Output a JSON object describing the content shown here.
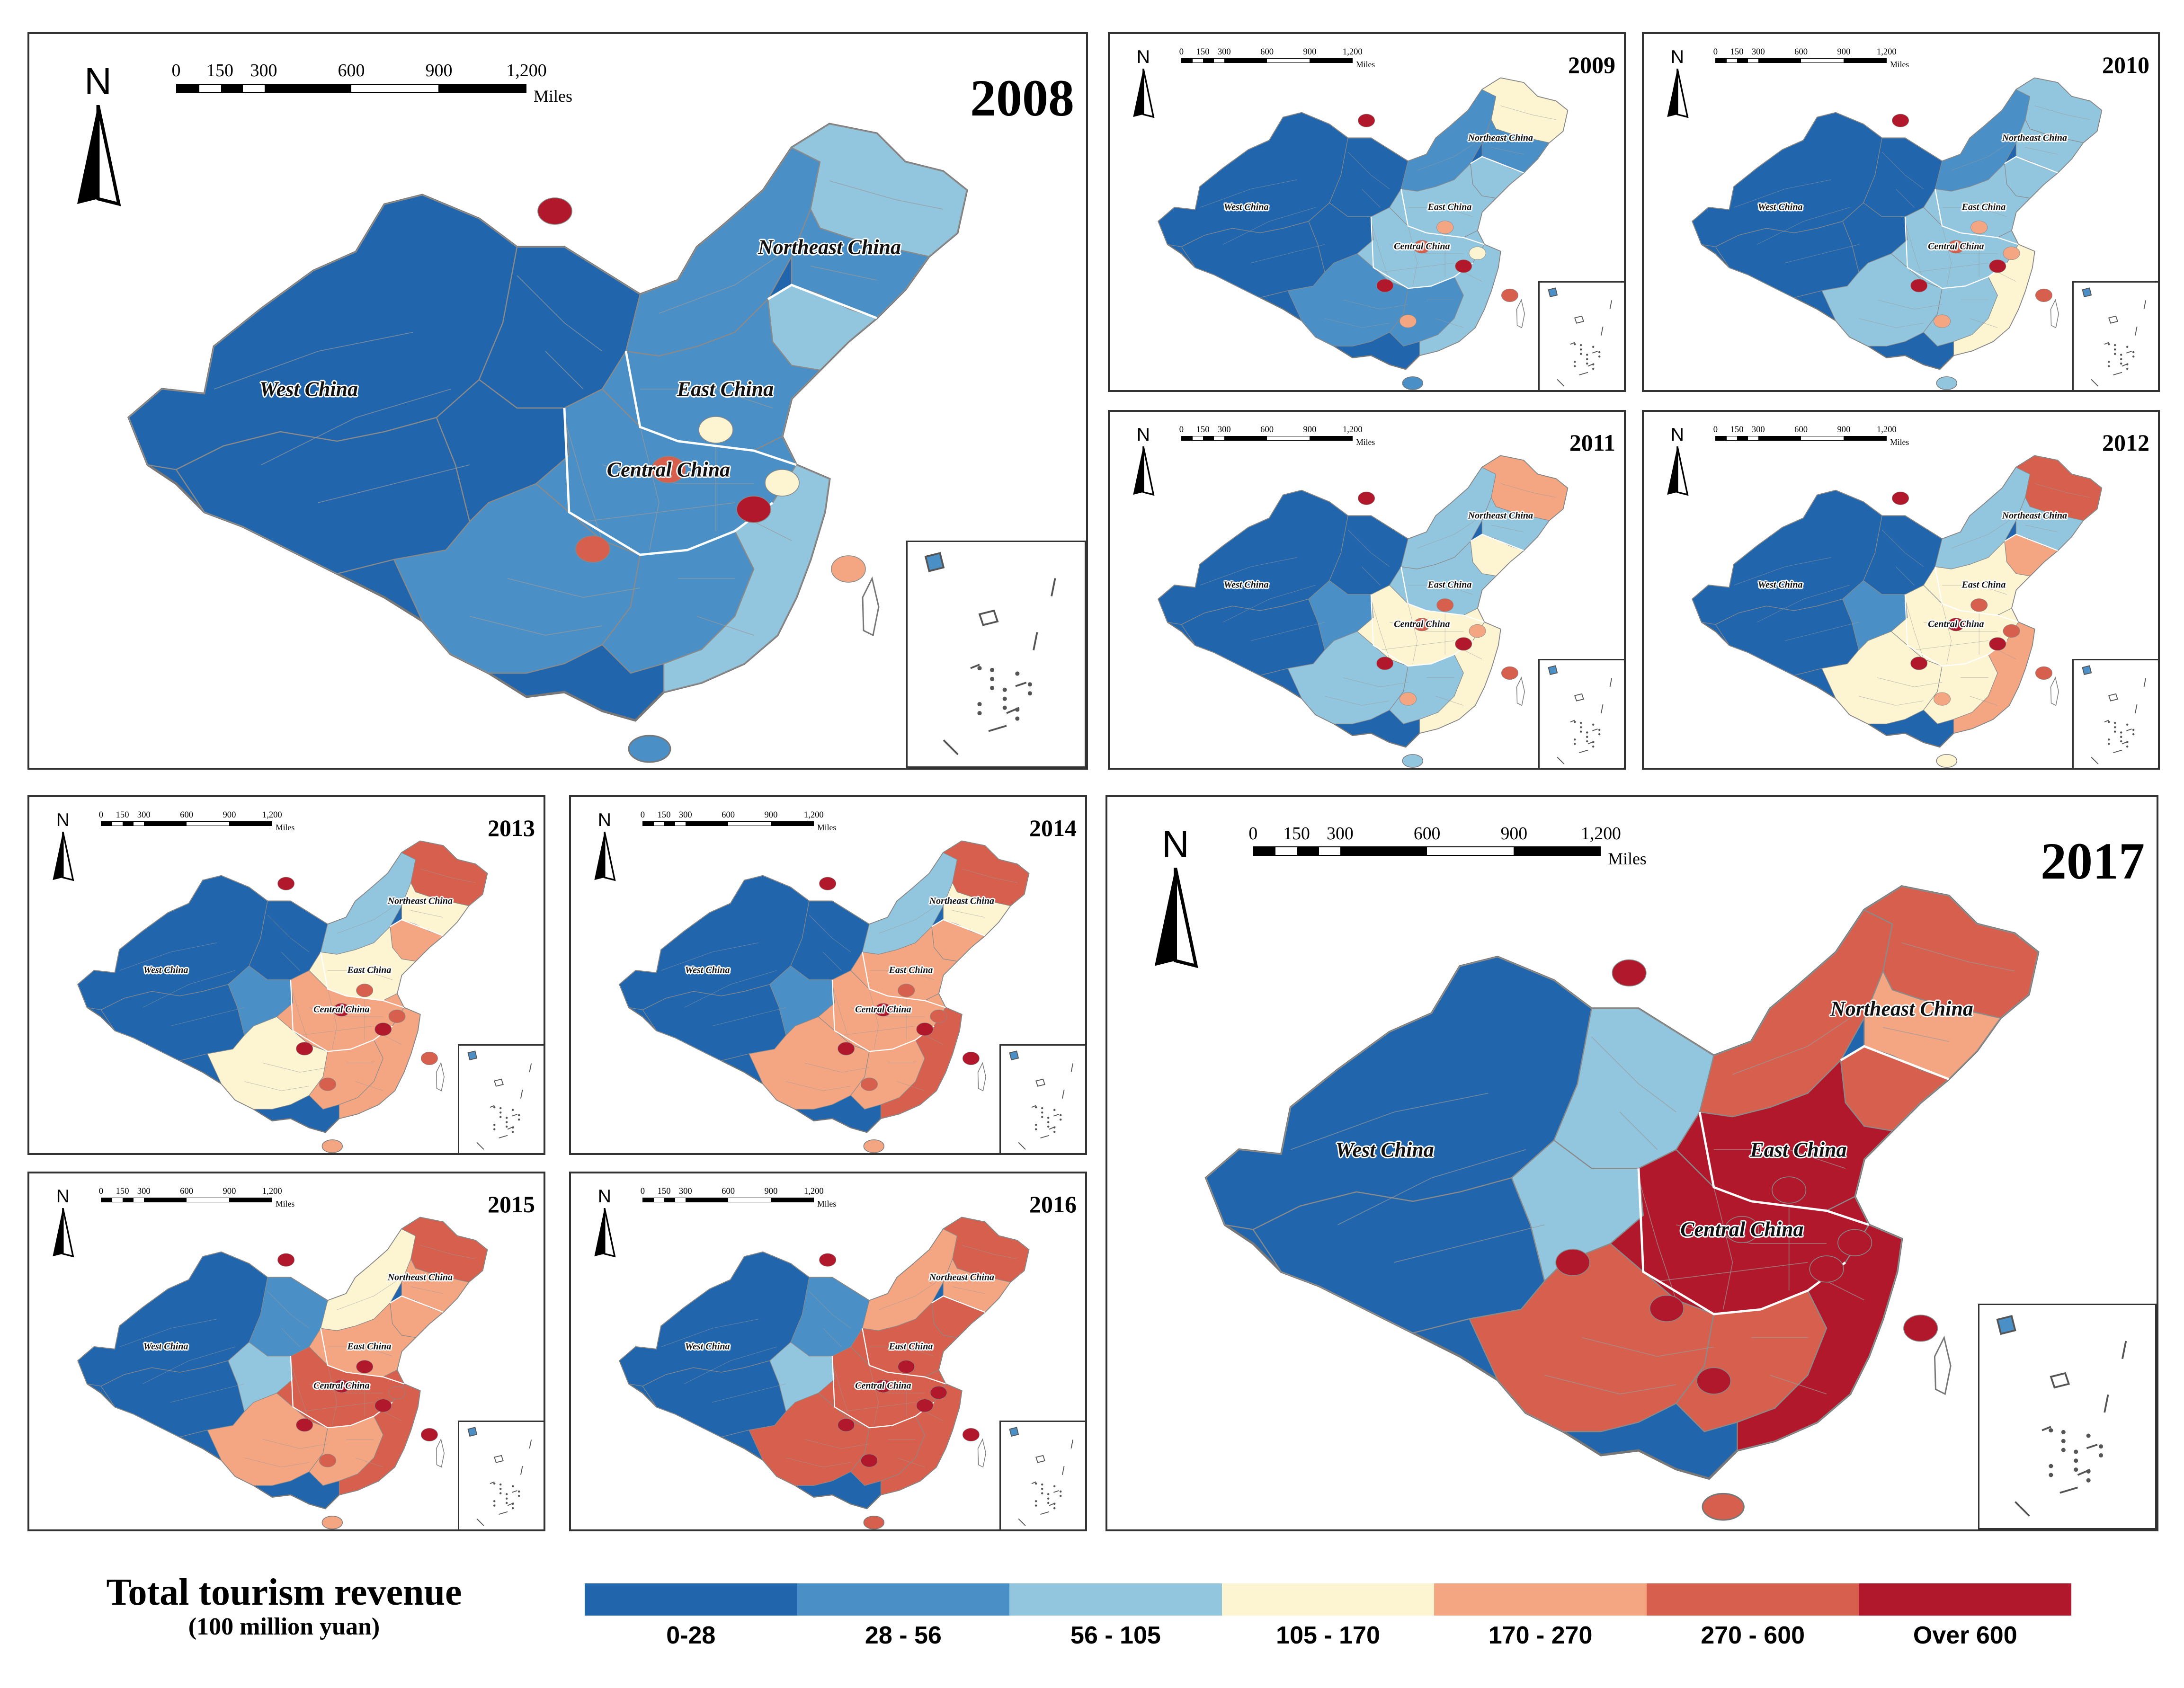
{
  "colors": {
    "c1": "#2166ac",
    "c2": "#4a90c6",
    "c3": "#92c5de",
    "c4": "#fdf5d2",
    "c5": "#f4a582",
    "c6": "#d6604d",
    "c7": "#b2182b",
    "border": "#8a8a8a",
    "frame": "#333333"
  },
  "scale_bar": {
    "ticks": [
      "0",
      "150",
      "300",
      "600",
      "900",
      "1,200"
    ],
    "unit": "Miles"
  },
  "north_label": "N",
  "region_labels": {
    "west": "West China",
    "east": "East China",
    "central": "Central China",
    "northeast": "Northeast China"
  },
  "panels": [
    {
      "year": "2008",
      "classes": {
        "west": 1,
        "northwest": 1,
        "tibet": 1,
        "qinghai": 1,
        "innermongolia": 2,
        "heilongjiang": 3,
        "jilin": 2,
        "liaoning": 3,
        "north": 2,
        "central": 2,
        "southwest": 2,
        "south": 2,
        "coast": 3
      },
      "hotspots": [
        [
          0.51,
          0.16,
          7
        ],
        [
          0.72,
          0.61,
          7
        ],
        [
          0.55,
          0.67,
          6
        ],
        [
          0.63,
          0.55,
          6
        ],
        [
          0.82,
          0.7,
          5
        ],
        [
          0.68,
          0.49,
          4
        ],
        [
          0.75,
          0.57,
          4
        ]
      ]
    },
    {
      "year": "2009",
      "classes": {
        "west": 1,
        "northwest": 1,
        "tibet": 1,
        "qinghai": 1,
        "innermongolia": 2,
        "heilongjiang": 4,
        "jilin": 2,
        "liaoning": 3,
        "north": 3,
        "central": 3,
        "southwest": 2,
        "south": 2,
        "coast": 3
      },
      "hotspots": [
        [
          0.51,
          0.16,
          7
        ],
        [
          0.72,
          0.61,
          7
        ],
        [
          0.55,
          0.67,
          7
        ],
        [
          0.63,
          0.55,
          6
        ],
        [
          0.82,
          0.7,
          6
        ],
        [
          0.68,
          0.49,
          5
        ],
        [
          0.75,
          0.57,
          4
        ],
        [
          0.6,
          0.78,
          5
        ]
      ]
    },
    {
      "year": "2010",
      "classes": {
        "west": 1,
        "northwest": 1,
        "tibet": 1,
        "qinghai": 1,
        "innermongolia": 2,
        "heilongjiang": 3,
        "jilin": 3,
        "liaoning": 3,
        "north": 3,
        "central": 3,
        "southwest": 3,
        "south": 3,
        "coast": 4
      },
      "hotspots": [
        [
          0.51,
          0.16,
          7
        ],
        [
          0.72,
          0.61,
          7
        ],
        [
          0.55,
          0.67,
          7
        ],
        [
          0.63,
          0.55,
          6
        ],
        [
          0.82,
          0.7,
          6
        ],
        [
          0.68,
          0.49,
          5
        ],
        [
          0.75,
          0.57,
          5
        ],
        [
          0.6,
          0.78,
          5
        ]
      ]
    },
    {
      "year": "2011",
      "classes": {
        "west": 1,
        "northwest": 1,
        "tibet": 1,
        "qinghai": 2,
        "innermongolia": 3,
        "heilongjiang": 5,
        "jilin": 3,
        "liaoning": 4,
        "north": 3,
        "central": 4,
        "southwest": 3,
        "south": 3,
        "coast": 4
      },
      "hotspots": [
        [
          0.51,
          0.16,
          7
        ],
        [
          0.72,
          0.61,
          7
        ],
        [
          0.55,
          0.67,
          7
        ],
        [
          0.63,
          0.55,
          6
        ],
        [
          0.82,
          0.7,
          6
        ],
        [
          0.68,
          0.49,
          6
        ],
        [
          0.75,
          0.57,
          5
        ],
        [
          0.6,
          0.78,
          5
        ]
      ]
    },
    {
      "year": "2012",
      "classes": {
        "west": 1,
        "northwest": 1,
        "tibet": 1,
        "qinghai": 2,
        "innermongolia": 3,
        "heilongjiang": 6,
        "jilin": 3,
        "liaoning": 5,
        "north": 4,
        "central": 4,
        "southwest": 4,
        "south": 4,
        "coast": 5
      },
      "hotspots": [
        [
          0.51,
          0.16,
          7
        ],
        [
          0.72,
          0.61,
          7
        ],
        [
          0.55,
          0.67,
          7
        ],
        [
          0.63,
          0.55,
          7
        ],
        [
          0.82,
          0.7,
          6
        ],
        [
          0.68,
          0.49,
          6
        ],
        [
          0.75,
          0.57,
          6
        ],
        [
          0.6,
          0.78,
          5
        ]
      ]
    },
    {
      "year": "2013",
      "classes": {
        "west": 1,
        "northwest": 1,
        "tibet": 1,
        "qinghai": 2,
        "innermongolia": 3,
        "heilongjiang": 6,
        "jilin": 4,
        "liaoning": 5,
        "north": 4,
        "central": 5,
        "southwest": 4,
        "south": 5,
        "coast": 5
      },
      "hotspots": [
        [
          0.51,
          0.16,
          7
        ],
        [
          0.72,
          0.61,
          7
        ],
        [
          0.55,
          0.67,
          7
        ],
        [
          0.63,
          0.55,
          7
        ],
        [
          0.82,
          0.7,
          6
        ],
        [
          0.68,
          0.49,
          6
        ],
        [
          0.75,
          0.57,
          6
        ],
        [
          0.6,
          0.78,
          6
        ]
      ]
    },
    {
      "year": "2014",
      "classes": {
        "west": 1,
        "northwest": 1,
        "tibet": 1,
        "qinghai": 2,
        "innermongolia": 3,
        "heilongjiang": 6,
        "jilin": 4,
        "liaoning": 5,
        "north": 5,
        "central": 5,
        "southwest": 5,
        "south": 5,
        "coast": 6
      },
      "hotspots": [
        [
          0.51,
          0.16,
          7
        ],
        [
          0.72,
          0.61,
          7
        ],
        [
          0.55,
          0.67,
          7
        ],
        [
          0.63,
          0.55,
          7
        ],
        [
          0.82,
          0.7,
          7
        ],
        [
          0.68,
          0.49,
          6
        ],
        [
          0.75,
          0.57,
          6
        ],
        [
          0.6,
          0.78,
          6
        ]
      ]
    },
    {
      "year": "2015",
      "classes": {
        "west": 1,
        "northwest": 2,
        "tibet": 1,
        "qinghai": 3,
        "innermongolia": 4,
        "heilongjiang": 6,
        "jilin": 5,
        "liaoning": 5,
        "north": 5,
        "central": 6,
        "southwest": 5,
        "south": 5,
        "coast": 6
      },
      "hotspots": [
        [
          0.51,
          0.16,
          7
        ],
        [
          0.72,
          0.61,
          7
        ],
        [
          0.55,
          0.67,
          7
        ],
        [
          0.63,
          0.55,
          7
        ],
        [
          0.82,
          0.7,
          7
        ],
        [
          0.68,
          0.49,
          7
        ],
        [
          0.75,
          0.57,
          6
        ],
        [
          0.6,
          0.78,
          6
        ]
      ]
    },
    {
      "year": "2016",
      "classes": {
        "west": 1,
        "northwest": 2,
        "tibet": 1,
        "qinghai": 3,
        "innermongolia": 5,
        "heilongjiang": 6,
        "jilin": 5,
        "liaoning": 6,
        "north": 6,
        "central": 6,
        "southwest": 6,
        "south": 6,
        "coast": 6
      },
      "hotspots": [
        [
          0.51,
          0.16,
          7
        ],
        [
          0.72,
          0.61,
          7
        ],
        [
          0.55,
          0.67,
          7
        ],
        [
          0.63,
          0.55,
          7
        ],
        [
          0.82,
          0.7,
          7
        ],
        [
          0.68,
          0.49,
          7
        ],
        [
          0.75,
          0.57,
          7
        ],
        [
          0.6,
          0.78,
          7
        ]
      ]
    },
    {
      "year": "2017",
      "classes": {
        "west": 1,
        "northwest": 3,
        "tibet": 1,
        "qinghai": 3,
        "innermongolia": 6,
        "heilongjiang": 6,
        "jilin": 5,
        "liaoning": 6,
        "north": 7,
        "central": 7,
        "southwest": 6,
        "south": 6,
        "coast": 7
      },
      "hotspots": [
        [
          0.51,
          0.16,
          7
        ],
        [
          0.72,
          0.61,
          7
        ],
        [
          0.55,
          0.67,
          7
        ],
        [
          0.63,
          0.55,
          7
        ],
        [
          0.82,
          0.7,
          7
        ],
        [
          0.68,
          0.49,
          7
        ],
        [
          0.75,
          0.57,
          7
        ],
        [
          0.6,
          0.78,
          7
        ],
        [
          0.45,
          0.6,
          7
        ]
      ]
    }
  ],
  "legend": {
    "title": "Total tourism revenue",
    "subtitle": "(100 million yuan)",
    "classes": [
      {
        "label": "0-28",
        "color": "#2166ac"
      },
      {
        "label": "28 - 56",
        "color": "#4a90c6"
      },
      {
        "label": "56 - 105",
        "color": "#92c5de"
      },
      {
        "label": "105 - 170",
        "color": "#fdf5d2"
      },
      {
        "label": "170 - 270",
        "color": "#f4a582"
      },
      {
        "label": "270 - 600",
        "color": "#d6604d"
      },
      {
        "label": "Over 600",
        "color": "#b2182b"
      }
    ]
  }
}
